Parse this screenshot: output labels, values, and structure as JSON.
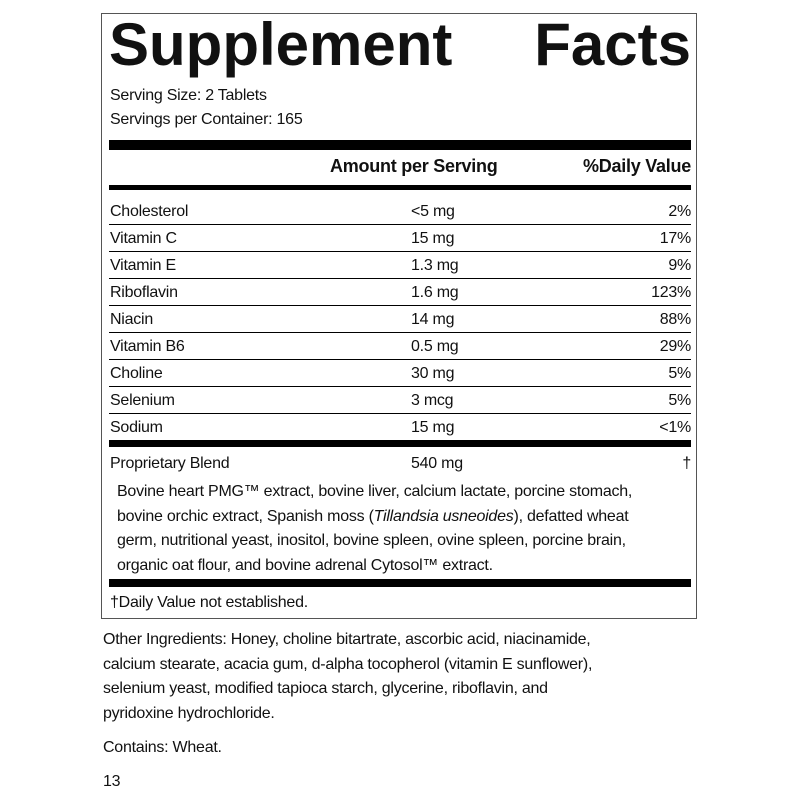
{
  "title": "Supplement Facts",
  "serving_size": "Serving Size: 2 Tablets",
  "servings_per_container": "Servings per Container: 165",
  "table": {
    "header": [
      "Amount per Serving",
      "%Daily Value"
    ],
    "rows": [
      [
        "Cholesterol",
        "<5 mg",
        "2%"
      ],
      [
        "Vitamin C",
        "15 mg",
        "17%"
      ],
      [
        "Vitamin E",
        "1.3 mg",
        "9%"
      ],
      [
        "Riboflavin",
        "1.6 mg",
        "123%"
      ],
      [
        "Niacin",
        "14 mg",
        "88%"
      ],
      [
        "Vitamin B6",
        "0.5 mg",
        "29%"
      ],
      [
        "Choline",
        "30 mg",
        "5%"
      ],
      [
        "Selenium",
        "3 mcg",
        "5%"
      ],
      [
        "Sodium",
        "15 mg",
        "<1%"
      ]
    ]
  },
  "blend": {
    "name": "Proprietary Blend",
    "amount": "540 mg",
    "daily_value": "†",
    "description_lines": [
      [
        "Bovine heart PMG™ extract, bovine liver, calcium lactate, porcine stomach,"
      ],
      [
        "bovine orchic extract, Spanish moss (",
        {
          "text": "Tillandsia usneoides",
          "italic": true
        },
        "), defatted wheat"
      ],
      [
        "germ, nutritional yeast, inositol, bovine spleen, ovine spleen, porcine brain,"
      ],
      [
        "organic oat flour, and bovine adrenal Cytosol™ extract."
      ]
    ]
  },
  "footnote": "†Daily Value not established.",
  "other_ingredients_lines": [
    "Other Ingredients: Honey, choline bitartrate, ascorbic acid, niacinamide,",
    "calcium stearate, acacia gum, d-alpha tocopherol (vitamin E sunflower),",
    "selenium yeast, modified tapioca starch, glycerine, riboflavin, and",
    "pyridoxine hydrochloride."
  ],
  "contains": "Contains: Wheat.",
  "page_number": "13"
}
